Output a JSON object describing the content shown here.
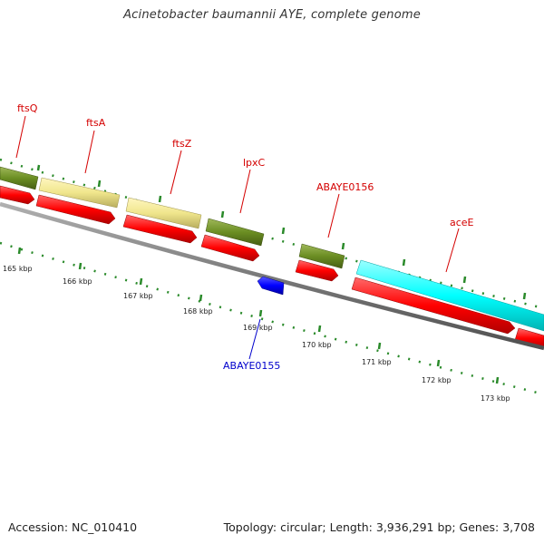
{
  "title": "Acinetobacter baumannii AYE, complete genome",
  "footer": {
    "accession": "Accession: NC_010410",
    "summary": "Topology: circular; Length: 3,936,291 bp; Genes: 3,708"
  },
  "colors": {
    "label_forward": "#d40000",
    "label_reverse": "#0000cc",
    "backbone": "#808080",
    "tick": "#2a8a2a",
    "cds_red": "#ff0000",
    "olive": "#6b8e23",
    "khaki": "#f0e68c",
    "cyan": "#00ffff",
    "blue": "#0000ff"
  },
  "gene_labels": [
    {
      "id": "ftsQ",
      "text": "ftsQ",
      "strand": "forward"
    },
    {
      "id": "ftsA",
      "text": "ftsA",
      "strand": "forward"
    },
    {
      "id": "ftsZ",
      "text": "ftsZ",
      "strand": "forward"
    },
    {
      "id": "lpxC",
      "text": "lpxC",
      "strand": "forward"
    },
    {
      "id": "ABAYE0156",
      "text": "ABAYE0156",
      "strand": "forward"
    },
    {
      "id": "aceE",
      "text": "aceE",
      "strand": "forward"
    },
    {
      "id": "ABAYE0155",
      "text": "ABAYE0155",
      "strand": "reverse"
    }
  ],
  "ruler_labels": [
    "165 kbp",
    "166 kbp",
    "167 kbp",
    "168 kbp",
    "169 kbp",
    "170 kbp",
    "171 kbp",
    "172 kbp",
    "173 kbp"
  ]
}
